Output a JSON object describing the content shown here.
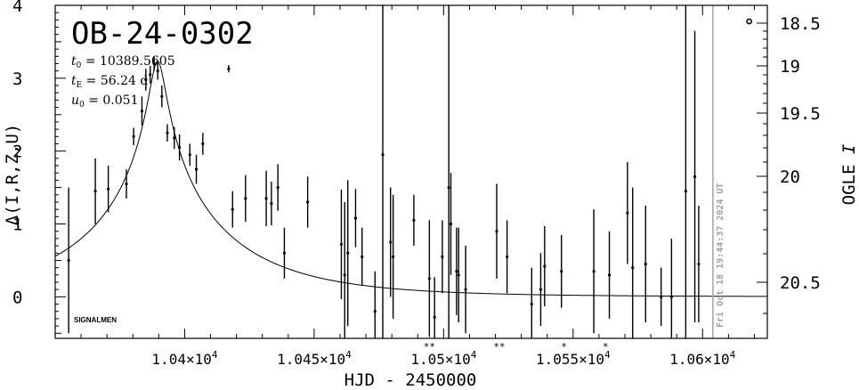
{
  "chart_data": {
    "type": "scatter",
    "title": "OB-24-0302",
    "xlabel": "HJD - 2450000",
    "ylabel_left": "Δ(I,R,Z,U)",
    "ylabel_right": "OGLE I",
    "xlim": [
      10350,
      10625
    ],
    "ylim": [
      -0.57,
      4.0
    ],
    "right_axis_mag": {
      "ref_mag": 18.55,
      "ref_delta": 3.78
    },
    "params": [
      {
        "sym": "t",
        "sub": "0",
        "text": " = 10389.5605"
      },
      {
        "sym": "t",
        "sub": "E",
        "text": " = 56.24 d"
      },
      {
        "sym": "u",
        "sub": "0",
        "text": " = 0.051"
      }
    ],
    "model": {
      "t0": 10389.5605,
      "tE": 56.24,
      "u0": 0.051
    },
    "x_ticks": [
      {
        "value": 10400,
        "label": "1.04×10",
        "exp": "4"
      },
      {
        "value": 10450,
        "label": "1.045×10",
        "exp": "4"
      },
      {
        "value": 10500,
        "label": "1.05×10",
        "exp": "4"
      },
      {
        "value": 10550,
        "label": "1.055×10",
        "exp": "4"
      },
      {
        "value": 10600,
        "label": "1.06×10",
        "exp": "4"
      }
    ],
    "y_ticks_left": [
      {
        "value": 0,
        "label": "0"
      },
      {
        "value": 1,
        "label": "1"
      },
      {
        "value": 2,
        "label": "2"
      },
      {
        "value": 3,
        "label": "3"
      },
      {
        "value": 4,
        "label": "4"
      }
    ],
    "y_ticks_right": [
      {
        "mag": 18.5,
        "label": "18.5"
      },
      {
        "mag": 19,
        "label": "19"
      },
      {
        "mag": 19.5,
        "label": "19.5"
      },
      {
        "mag": 20,
        "label": "20"
      },
      {
        "mag": 20.5,
        "label": "20.5"
      }
    ],
    "vline": {
      "x": 10604,
      "label": "Fri Oct 18 19:44:37 2024 UT"
    },
    "credit": "SIGNALMEN",
    "open_marker": {
      "x": 10618,
      "y": 3.78
    },
    "star_markers": [
      {
        "x": 10494.5,
        "label": "**"
      },
      {
        "x": 10521.5,
        "label": "**"
      },
      {
        "x": 10546.5,
        "label": "*"
      },
      {
        "x": 10562.5,
        "label": "*"
      }
    ],
    "points": [
      {
        "x": 10355.2,
        "y": 0.5,
        "err": 1.0
      },
      {
        "x": 10365.5,
        "y": 1.45,
        "err": 0.45
      },
      {
        "x": 10370.5,
        "y": 1.48,
        "err": 0.32
      },
      {
        "x": 10377.5,
        "y": 1.55,
        "err": 0.2
      },
      {
        "x": 10380.3,
        "y": 2.2,
        "err": 0.12
      },
      {
        "x": 10383.5,
        "y": 2.55,
        "err": 0.2
      },
      {
        "x": 10385.0,
        "y": 2.98,
        "err": 0.15
      },
      {
        "x": 10386.7,
        "y": 3.05,
        "err": 0.12
      },
      {
        "x": 10388.2,
        "y": 3.2,
        "err": 0.1
      },
      {
        "x": 10389.6,
        "y": 3.1,
        "err": 0.12
      },
      {
        "x": 10391.2,
        "y": 2.75,
        "err": 0.15
      },
      {
        "x": 10393.3,
        "y": 2.25,
        "err": 0.12
      },
      {
        "x": 10396.0,
        "y": 2.18,
        "err": 0.15
      },
      {
        "x": 10398.0,
        "y": 2.05,
        "err": 0.18
      },
      {
        "x": 10402.0,
        "y": 1.95,
        "err": 0.15
      },
      {
        "x": 10404.5,
        "y": 1.75,
        "err": 0.2
      },
      {
        "x": 10407.0,
        "y": 2.1,
        "err": 0.15
      },
      {
        "x": 10417.0,
        "y": 3.13,
        "err": 0.05
      },
      {
        "x": 10418.5,
        "y": 1.2,
        "err": 0.25
      },
      {
        "x": 10423.5,
        "y": 1.35,
        "err": 0.32
      },
      {
        "x": 10431.5,
        "y": 1.35,
        "err": 0.38
      },
      {
        "x": 10433.5,
        "y": 1.28,
        "err": 0.3
      },
      {
        "x": 10436.0,
        "y": 1.5,
        "err": 0.32
      },
      {
        "x": 10438.5,
        "y": 0.6,
        "err": 0.35
      },
      {
        "x": 10447.5,
        "y": 1.3,
        "err": 0.35
      },
      {
        "x": 10460.5,
        "y": 0.72,
        "err": 0.75
      },
      {
        "x": 10461.8,
        "y": 0.3,
        "err": 1.0
      },
      {
        "x": 10463.0,
        "y": 0.6,
        "err": 1.0
      },
      {
        "x": 10466.0,
        "y": 1.08,
        "err": 0.4
      },
      {
        "x": 10468.5,
        "y": 0.55,
        "err": 0.4
      },
      {
        "x": 10473.5,
        "y": -0.2,
        "err": 0.55
      },
      {
        "x": 10476.5,
        "y": 1.95,
        "err": 2.55
      },
      {
        "x": 10479.5,
        "y": 0.75,
        "err": 0.75
      },
      {
        "x": 10480.5,
        "y": 0.55,
        "err": 0.85
      },
      {
        "x": 10488.5,
        "y": 1.05,
        "err": 0.35
      },
      {
        "x": 10494.5,
        "y": 0.25,
        "err": 0.8
      },
      {
        "x": 10496.5,
        "y": -0.28,
        "err": 0.55
      },
      {
        "x": 10499.5,
        "y": 0.55,
        "err": 0.5
      },
      {
        "x": 10502.0,
        "y": 1.5,
        "err": 2.5
      },
      {
        "x": 10502.8,
        "y": 1.0,
        "err": 0.7
      },
      {
        "x": 10505.0,
        "y": 0.35,
        "err": 0.6
      },
      {
        "x": 10505.8,
        "y": 0.3,
        "err": 0.65
      },
      {
        "x": 10508.5,
        "y": 0.1,
        "err": 0.6
      },
      {
        "x": 10520.5,
        "y": 0.9,
        "err": 0.65
      },
      {
        "x": 10524.5,
        "y": 0.55,
        "err": 0.5
      },
      {
        "x": 10534.0,
        "y": -0.1,
        "err": 0.5
      },
      {
        "x": 10537.5,
        "y": 0.1,
        "err": 0.5
      },
      {
        "x": 10539.0,
        "y": 0.42,
        "err": 0.55
      },
      {
        "x": 10545.5,
        "y": 0.35,
        "err": 0.5
      },
      {
        "x": 10558.0,
        "y": 0.35,
        "err": 0.85
      },
      {
        "x": 10564.0,
        "y": 0.3,
        "err": 0.6
      },
      {
        "x": 10571.0,
        "y": 1.15,
        "err": 0.7
      },
      {
        "x": 10573.0,
        "y": 0.4,
        "err": 1.1
      },
      {
        "x": 10578.0,
        "y": 0.45,
        "err": 0.8
      },
      {
        "x": 10584.0,
        "y": 0.0,
        "err": 0.4
      },
      {
        "x": 10588.0,
        "y": 0.0,
        "err": 0.8
      },
      {
        "x": 10593.5,
        "y": 1.45,
        "err": 3.6
      },
      {
        "x": 10597.0,
        "y": 1.65,
        "err": 2.0
      },
      {
        "x": 10598.5,
        "y": 0.45,
        "err": 0.8
      }
    ]
  }
}
